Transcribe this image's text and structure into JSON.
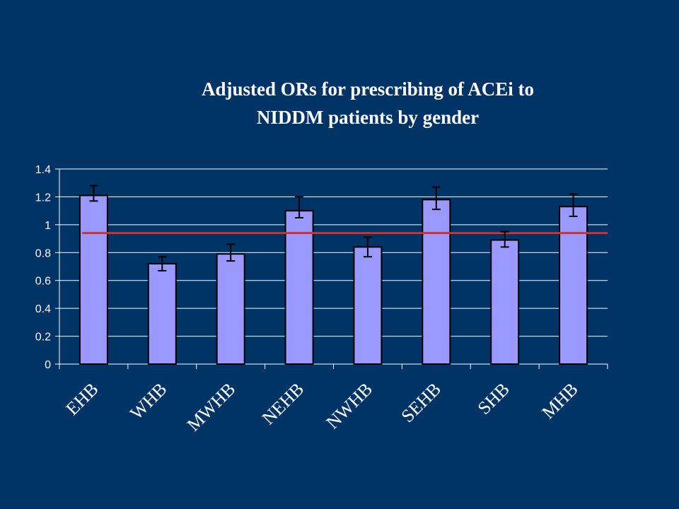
{
  "chart_data": {
    "type": "bar",
    "title_lines": [
      "Adjusted ORs for prescribing of ACEi to",
      "NIDDM patients by gender"
    ],
    "categories": [
      "EHB",
      "WHB",
      "MWHB",
      "NEHB",
      "NWHB",
      "SEHB",
      "SHB",
      "MHB"
    ],
    "values": [
      1.21,
      0.72,
      0.79,
      1.1,
      0.84,
      1.18,
      0.89,
      1.13
    ],
    "error_low": [
      1.17,
      0.67,
      0.74,
      1.05,
      0.77,
      1.11,
      0.84,
      1.06
    ],
    "error_high": [
      1.28,
      0.77,
      0.86,
      1.2,
      0.91,
      1.27,
      0.95,
      1.22
    ],
    "reference_line": 0.94,
    "ylim": [
      0,
      1.4
    ],
    "yticks": [
      "0",
      "0.2",
      "0.4",
      "0.6",
      "0.8",
      "1",
      "1.2",
      "1.4"
    ],
    "grid": true,
    "colors": {
      "background": "#003366",
      "bar_fill": "#9999ff",
      "bar_stroke": "#000000",
      "reference_line": "#cc3333",
      "grid": "#ffffff",
      "text": "#ffffff"
    }
  }
}
